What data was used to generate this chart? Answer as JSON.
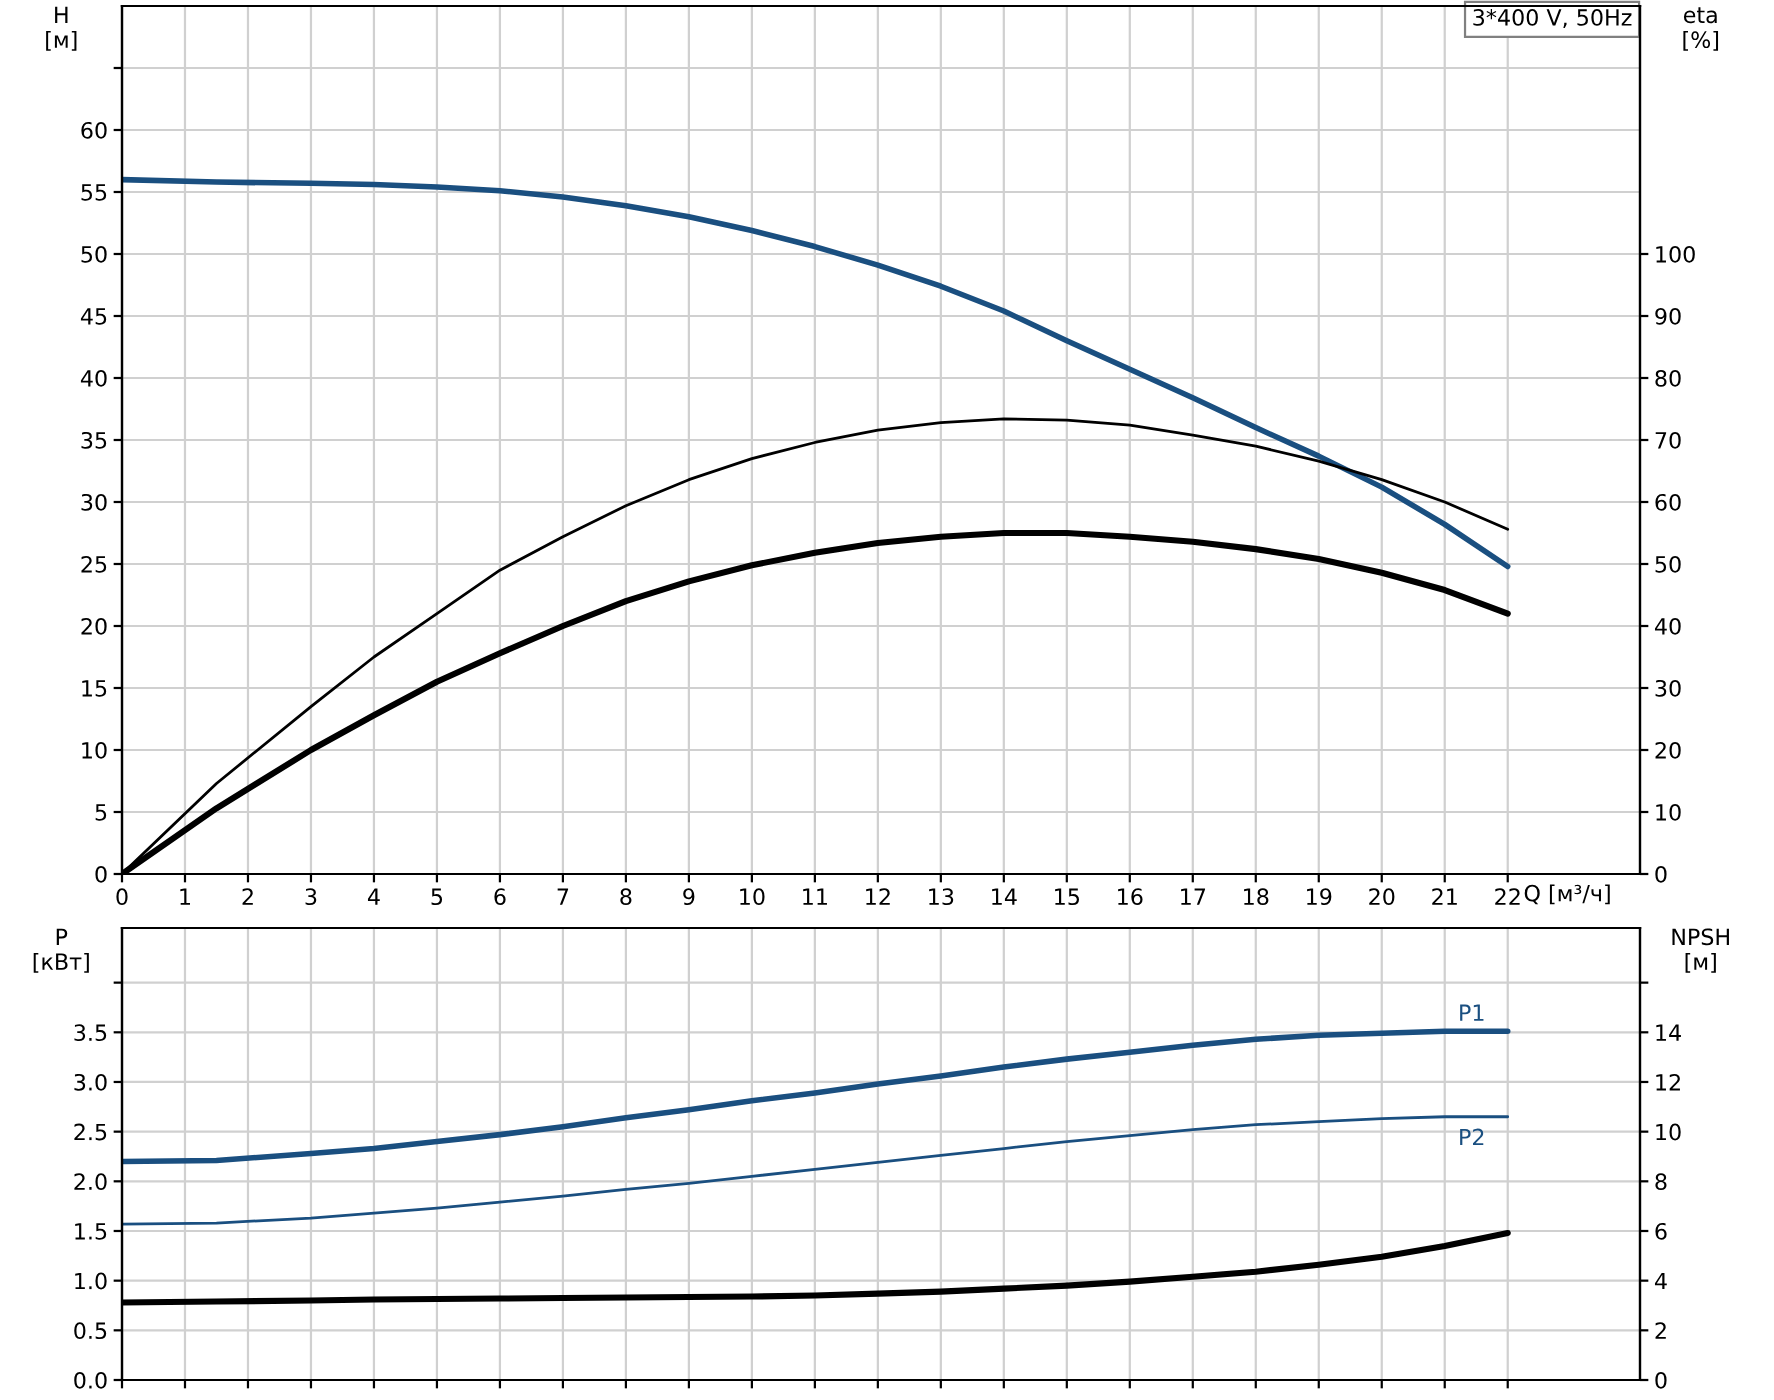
{
  "chart_data": [
    {
      "type": "line",
      "xlabel": "Q [м³/ч]",
      "ylabel": "H\n[м]",
      "y2label": "eta\n[%]",
      "annotations": [
        "3*400 V, 50Hz"
      ],
      "x": [
        0,
        1.5,
        3,
        4,
        5,
        6,
        7,
        8,
        9,
        10,
        11,
        12,
        13,
        14,
        15,
        16,
        17,
        18,
        19,
        20,
        21,
        22
      ],
      "series": [
        {
          "color": "#1a4f80",
          "axis": "y",
          "values": [
            56,
            55.8,
            55.7,
            55.6,
            55.4,
            55.1,
            54.6,
            53.9,
            53.0,
            51.9,
            50.6,
            49.1,
            47.4,
            45.4,
            43.0,
            40.7,
            38.4,
            36.0,
            33.7,
            31.2,
            28.2,
            24.8
          ]
        },
        {
          "color": "#000000",
          "axis": "y2",
          "values": [
            0,
            14.6,
            27,
            35,
            42,
            49,
            54.4,
            59.4,
            63.6,
            67,
            69.6,
            71.6,
            72.8,
            73.4,
            73.2,
            72.4,
            70.8,
            69,
            66.6,
            63.6,
            60,
            55.6
          ]
        },
        {
          "color": "#000000",
          "axis": "y2",
          "values": [
            0,
            10.6,
            20,
            25.6,
            31,
            35.6,
            40,
            44,
            47.2,
            49.8,
            51.8,
            53.4,
            54.4,
            55,
            55,
            54.4,
            53.6,
            52.4,
            50.8,
            48.6,
            45.8,
            42
          ]
        }
      ],
      "xlim": [
        0,
        24.1
      ],
      "xticks": [
        0,
        1,
        2,
        3,
        4,
        5,
        6,
        7,
        8,
        9,
        10,
        11,
        12,
        13,
        14,
        15,
        16,
        17,
        18,
        19,
        20,
        21,
        22
      ],
      "ylim": [
        0,
        70
      ],
      "yticks": [
        0,
        5,
        10,
        15,
        20,
        25,
        30,
        35,
        40,
        45,
        50,
        55,
        60,
        {
          "value": 65,
          "label": null
        }
      ],
      "y2lim": [
        0,
        140
      ],
      "y2ticks": [
        0,
        10,
        20,
        30,
        40,
        50,
        60,
        70,
        80,
        90,
        100
      ],
      "grid": true,
      "legend": false
    },
    {
      "type": "line",
      "ylabel": "P\n[кВт]",
      "y2label": "NPSH\n[м]",
      "x": [
        0,
        1.5,
        3,
        4,
        5,
        6,
        7,
        8,
        9,
        10,
        11,
        12,
        13,
        14,
        15,
        16,
        17,
        18,
        19,
        20,
        21,
        22
      ],
      "series": [
        {
          "name": "P1",
          "color": "#1a4f80",
          "axis": "y",
          "values": [
            2.2,
            2.21,
            2.28,
            2.33,
            2.4,
            2.47,
            2.55,
            2.64,
            2.72,
            2.81,
            2.89,
            2.98,
            3.06,
            3.15,
            3.23,
            3.3,
            3.37,
            3.43,
            3.47,
            3.49,
            3.51,
            3.51
          ]
        },
        {
          "name": "P2",
          "color": "#1a4f80",
          "axis": "y",
          "values": [
            1.57,
            1.58,
            1.63,
            1.68,
            1.73,
            1.79,
            1.85,
            1.92,
            1.98,
            2.05,
            2.12,
            2.19,
            2.26,
            2.33,
            2.4,
            2.46,
            2.52,
            2.57,
            2.6,
            2.63,
            2.65,
            2.65
          ]
        },
        {
          "color": "#000000",
          "axis": "y2",
          "values": [
            3.12,
            3.16,
            3.2,
            3.24,
            3.26,
            3.28,
            3.3,
            3.32,
            3.34,
            3.36,
            3.4,
            3.48,
            3.56,
            3.68,
            3.8,
            3.96,
            4.16,
            4.36,
            4.64,
            4.96,
            5.4,
            5.92
          ]
        }
      ],
      "xlim": [
        0,
        24.1
      ],
      "xticks": [
        0,
        1,
        2,
        3,
        4,
        5,
        6,
        7,
        8,
        9,
        10,
        11,
        12,
        13,
        14,
        15,
        16,
        17,
        18,
        19,
        20,
        21,
        22
      ],
      "ylim": [
        0,
        4.55
      ],
      "yticks": [
        {
          "value": 0,
          "label": "0.0"
        },
        0.5,
        {
          "value": 1,
          "label": "1.0"
        },
        1.5,
        {
          "value": 2,
          "label": "2.0"
        },
        2.5,
        {
          "value": 3,
          "label": "3.0"
        },
        3.5,
        {
          "value": 4,
          "label": null
        }
      ],
      "y2lim": [
        0,
        18.2
      ],
      "y2ticks": [
        0,
        2,
        4,
        6,
        8,
        10,
        12,
        14,
        {
          "value": 16,
          "label": null
        }
      ],
      "tick_labels": "y",
      "grid": true,
      "legend": false
    }
  ]
}
